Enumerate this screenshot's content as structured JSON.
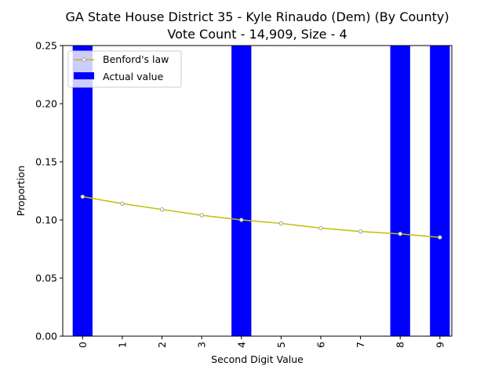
{
  "chart_data": {
    "type": "bar",
    "title": "GA State House District 35 - Kyle Rinaudo (Dem) (By County)",
    "subtitle": "Vote Count - 14,909, Size - 4",
    "xlabel": "Second Digit Value",
    "ylabel": "Proportion",
    "categories": [
      "0",
      "1",
      "2",
      "3",
      "4",
      "5",
      "6",
      "7",
      "8",
      "9"
    ],
    "ylim": [
      0,
      0.25
    ],
    "yticks": [
      "0.00",
      "0.05",
      "0.10",
      "0.15",
      "0.20",
      "0.25"
    ],
    "grid": false,
    "legend_position": "upper-left",
    "series": [
      {
        "name": "Actual value",
        "kind": "bar",
        "color": "#0000ff",
        "values": [
          0.25,
          0,
          0,
          0,
          0.25,
          0,
          0,
          0,
          0.25,
          0.25
        ]
      },
      {
        "name": "Benford's law",
        "kind": "line",
        "color": "#bfbf00",
        "marker_color": "#a0a0a0",
        "values": [
          0.12,
          0.114,
          0.109,
          0.104,
          0.1,
          0.097,
          0.093,
          0.09,
          0.088,
          0.085
        ]
      }
    ]
  }
}
